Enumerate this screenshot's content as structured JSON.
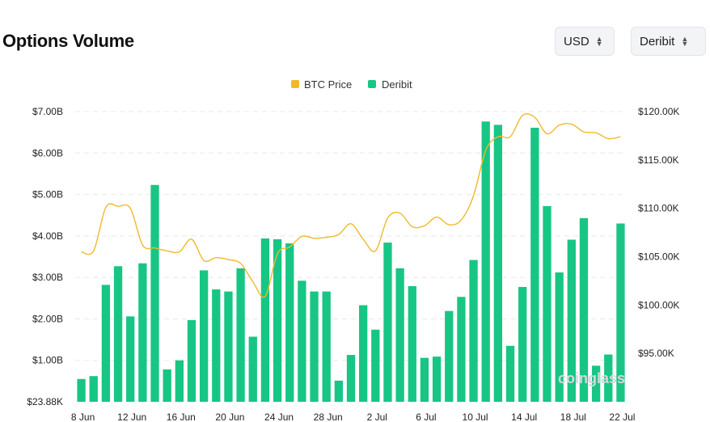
{
  "header": {
    "title": "Options Volume",
    "currency_select": "USD",
    "exchange_select": "Deribit"
  },
  "watermark": "coinglass",
  "colors": {
    "btc_price": "#f0b92a",
    "deribit": "#17c684",
    "grid": "#e6e8eb"
  },
  "chart_data": {
    "type": "bar",
    "title": "Options Volume",
    "legend": {
      "position": "top-center",
      "entries": [
        "BTC Price",
        "Deribit"
      ]
    },
    "grid": true,
    "x_tick_labels": [
      "8 Jun",
      "12 Jun",
      "16 Jun",
      "20 Jun",
      "24 Jun",
      "28 Jun",
      "2 Jul",
      "6 Jul",
      "10 Jul",
      "14 Jul",
      "18 Jul",
      "22 Jul"
    ],
    "y_left": {
      "ticks": [
        "$23.88K",
        "$1.00B",
        "$2.00B",
        "$3.00B",
        "$4.00B",
        "$5.00B",
        "$6.00B",
        "$7.00B"
      ],
      "range": [
        0,
        7.0
      ],
      "unit": "B USD"
    },
    "y_right": {
      "ticks": [
        "$95.00K",
        "$100.00K",
        "$105.00K",
        "$110.00K",
        "$115.00K",
        "$120.00K"
      ],
      "range": [
        90.0,
        120.0
      ],
      "unit": "K USD"
    },
    "categories": [
      "8 Jun",
      "9 Jun",
      "10 Jun",
      "11 Jun",
      "12 Jun",
      "13 Jun",
      "14 Jun",
      "15 Jun",
      "16 Jun",
      "17 Jun",
      "18 Jun",
      "19 Jun",
      "20 Jun",
      "21 Jun",
      "22 Jun",
      "23 Jun",
      "24 Jun",
      "25 Jun",
      "26 Jun",
      "27 Jun",
      "28 Jun",
      "29 Jun",
      "30 Jun",
      "1 Jul",
      "2 Jul",
      "3 Jul",
      "4 Jul",
      "5 Jul",
      "6 Jul",
      "7 Jul",
      "8 Jul",
      "9 Jul",
      "10 Jul",
      "11 Jul",
      "12 Jul",
      "13 Jul",
      "14 Jul",
      "15 Jul",
      "16 Jul",
      "17 Jul",
      "18 Jul",
      "19 Jul",
      "20 Jul",
      "21 Jul",
      "22 Jul"
    ],
    "series": [
      {
        "name": "Deribit",
        "type": "bar",
        "axis": "left",
        "values": [
          0.55,
          0.62,
          2.82,
          3.27,
          2.06,
          3.34,
          5.23,
          0.78,
          1.0,
          1.97,
          3.17,
          2.71,
          2.66,
          3.22,
          1.57,
          3.94,
          3.92,
          3.82,
          2.92,
          2.66,
          2.66,
          0.51,
          1.13,
          2.33,
          1.74,
          3.84,
          3.22,
          2.79,
          1.06,
          1.09,
          2.19,
          2.53,
          3.42,
          6.76,
          6.68,
          1.35,
          2.77,
          6.61,
          4.72,
          3.12,
          3.91,
          4.43,
          0.87,
          1.14,
          4.3
        ]
      },
      {
        "name": "BTC Price",
        "type": "line",
        "axis": "right",
        "values": [
          105.5,
          105.6,
          110.1,
          110.2,
          110.0,
          106.2,
          105.9,
          105.6,
          105.5,
          106.8,
          104.6,
          104.9,
          104.7,
          104.3,
          102.4,
          100.9,
          105.3,
          106.0,
          107.1,
          106.9,
          107.0,
          107.3,
          108.4,
          106.8,
          105.6,
          109.0,
          109.5,
          108.1,
          108.2,
          109.1,
          108.3,
          108.8,
          111.3,
          116.0,
          117.4,
          117.4,
          119.6,
          119.4,
          117.7,
          118.6,
          118.7,
          117.9,
          117.8,
          117.2,
          117.4
        ]
      }
    ]
  }
}
